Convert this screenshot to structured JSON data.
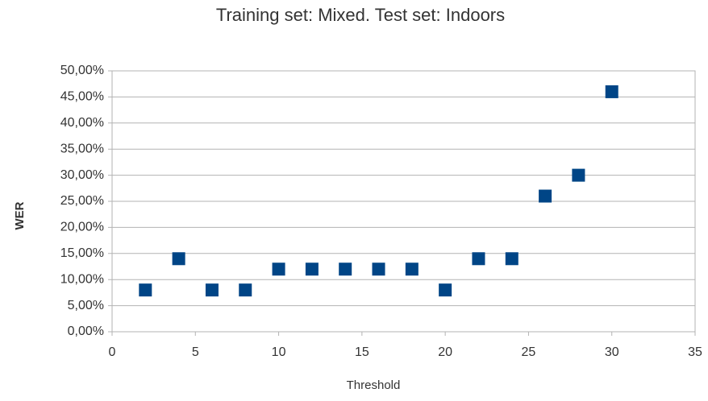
{
  "chart_data": {
    "type": "scatter",
    "title": "Training set: Mixed. Test set: Indoors",
    "x_label": "Threshold",
    "y_label": "WER",
    "series": [
      {
        "name": "WER",
        "color": "#004586",
        "x": [
          2,
          4,
          6,
          8,
          10,
          12,
          14,
          16,
          18,
          20,
          22,
          24,
          26,
          28,
          30
        ],
        "values": [
          8,
          14,
          8,
          8,
          12,
          12,
          12,
          12,
          12,
          8,
          14,
          14,
          26,
          30,
          46
        ]
      }
    ],
    "xlim": [
      0,
      35
    ],
    "xticks": [
      0,
      5,
      10,
      15,
      20,
      25,
      30,
      35
    ],
    "ylim": [
      0,
      50
    ],
    "yticks": [
      {
        "value": 0,
        "label": "0,00%"
      },
      {
        "value": 5,
        "label": "5,00%"
      },
      {
        "value": 10,
        "label": "10,00%"
      },
      {
        "value": 15,
        "label": "15,00%"
      },
      {
        "value": 20,
        "label": "20,00%"
      },
      {
        "value": 25,
        "label": "25,00%"
      },
      {
        "value": 30,
        "label": "30,00%"
      },
      {
        "value": 35,
        "label": "35,00%"
      },
      {
        "value": 40,
        "label": "40,00%"
      },
      {
        "value": 45,
        "label": "45,00%"
      },
      {
        "value": 50,
        "label": "50,00%"
      }
    ],
    "grid": true
  }
}
